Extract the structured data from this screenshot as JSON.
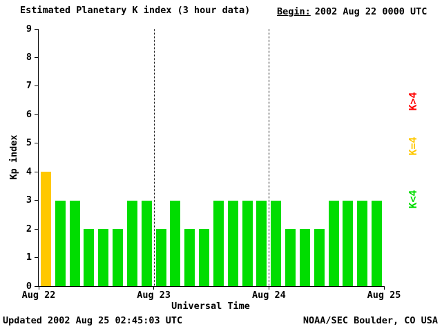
{
  "title": "Estimated Planetary K index (3 hour data)",
  "begin": {
    "label": "Begin:",
    "value": "2002 Aug 22 0000 UTC"
  },
  "legend": [
    {
      "label": "K>4",
      "color": "#ff0000"
    },
    {
      "label": "K=4",
      "color": "#ffc800"
    },
    {
      "label": "K<4",
      "color": "#00dd00"
    }
  ],
  "footer": {
    "updated": "Updated 2002 Aug 25 02:45:03 UTC",
    "credit": "NOAA/SEC Boulder, CO USA"
  },
  "chart_data": {
    "type": "bar",
    "title": "Estimated Planetary K index (3 hour data)",
    "xlabel": "Universal Time",
    "ylabel": "Kp index",
    "ylim": [
      0,
      9
    ],
    "yticks": [
      0,
      1,
      2,
      3,
      4,
      5,
      6,
      7,
      8,
      9
    ],
    "x_day_labels": [
      "Aug 22",
      "Aug 23",
      "Aug 24",
      "Aug 25"
    ],
    "bars_per_day": 8,
    "hours_per_bar": 3,
    "values": [
      4,
      3,
      3,
      2,
      2,
      2,
      3,
      3,
      2,
      3,
      2,
      2,
      3,
      3,
      3,
      3,
      3,
      2,
      2,
      2,
      3,
      3,
      3,
      3
    ],
    "colors": {
      "below4": "#00dd00",
      "equal4": "#ffc800",
      "above4": "#ff0000"
    },
    "gridlines_dotted_at_days": [
      "Aug 23",
      "Aug 24"
    ],
    "legend_position": "right",
    "grid": "vertical-dotted-day-boundaries"
  }
}
